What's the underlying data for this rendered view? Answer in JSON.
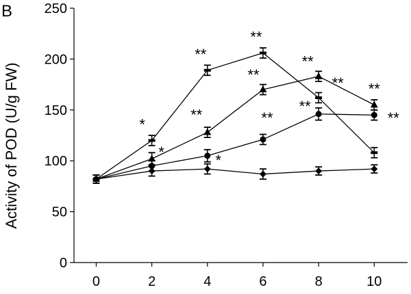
{
  "chart_data": {
    "type": "line",
    "panel_label": "B",
    "title": "",
    "xlabel": "",
    "ylabel": "Activity of POD (U/g FW)",
    "xlim": [
      -0.8,
      11.2
    ],
    "ylim": [
      0,
      250
    ],
    "x": [
      0,
      2,
      4,
      6,
      8,
      10
    ],
    "xticks": [
      "0",
      "2",
      "4",
      "6",
      "8",
      "10"
    ],
    "yticks": [
      "0",
      "50",
      "100",
      "150",
      "200",
      "250"
    ],
    "grid": false,
    "legend": "none",
    "series": [
      {
        "marker": "diamond",
        "values": [
          82,
          90,
          92,
          87,
          90,
          92
        ],
        "errors": [
          4,
          5,
          5,
          5,
          4,
          4
        ],
        "labels": [
          "",
          "",
          "",
          "",
          "",
          ""
        ]
      },
      {
        "marker": "circle",
        "values": [
          82,
          95,
          105,
          121,
          146,
          145
        ],
        "errors": [
          4,
          5,
          6,
          5,
          6,
          5
        ],
        "labels": [
          "",
          "",
          "*",
          "**",
          "**",
          "**"
        ]
      },
      {
        "marker": "triangle",
        "values": [
          82,
          102,
          128,
          170,
          183,
          155
        ],
        "errors": [
          4,
          6,
          5,
          5,
          5,
          5
        ],
        "labels": [
          "",
          "*",
          "**",
          "**",
          "**",
          "**"
        ]
      },
      {
        "marker": "dash",
        "values": [
          82,
          120,
          189,
          206,
          162,
          108
        ],
        "errors": [
          4,
          5,
          5,
          5,
          5,
          5
        ],
        "labels": [
          "",
          "*",
          "**",
          "**",
          "**",
          ""
        ]
      }
    ]
  }
}
